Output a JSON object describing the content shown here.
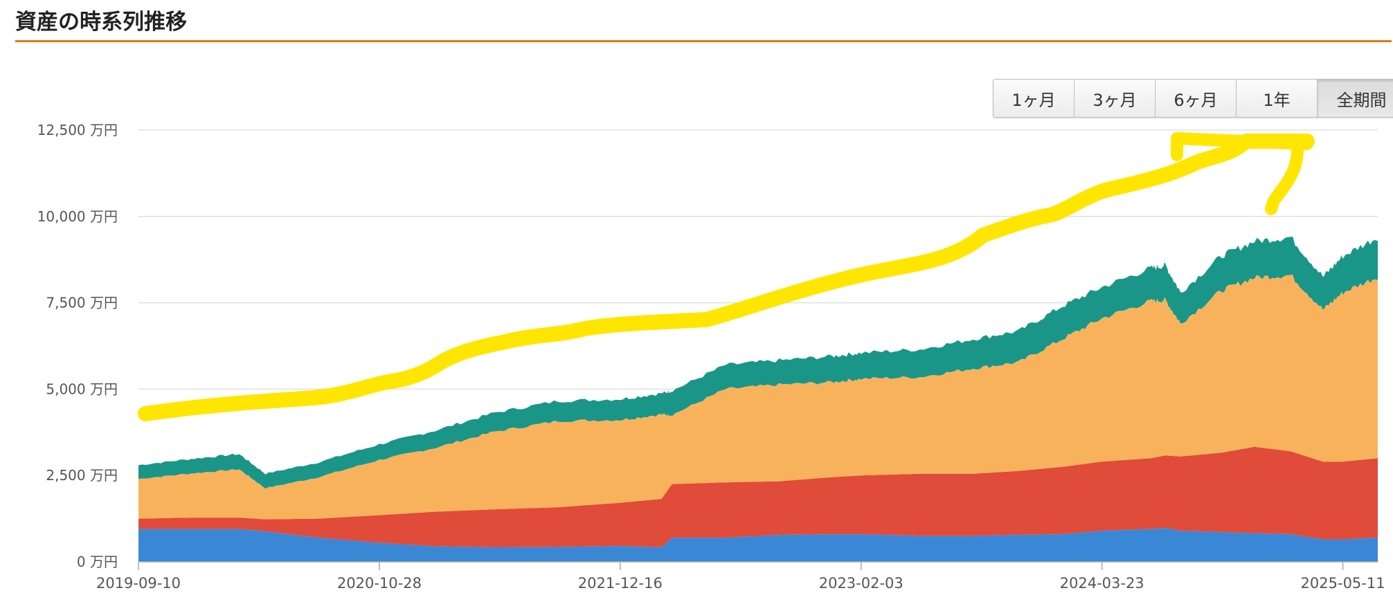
{
  "page": {
    "title": "資産の時系列推移"
  },
  "range_selector": {
    "buttons": [
      {
        "label": "1ヶ月"
      },
      {
        "label": "3ヶ月"
      },
      {
        "label": "6ヶ月"
      },
      {
        "label": "1年"
      },
      {
        "label": "全期間"
      }
    ],
    "active": "全期間"
  },
  "colors": {
    "title_rule": "#e07a10",
    "series": [
      "#3a87d6",
      "#e04b3a",
      "#f9b25c",
      "#1a9688"
    ],
    "annotation": "#ffe600"
  },
  "chart_data": {
    "type": "area",
    "stacked": true,
    "title": "",
    "xlabel": "",
    "ylabel": "",
    "y_unit": "万円",
    "ylim": [
      0,
      12500
    ],
    "yticks": [
      {
        "value": 0,
        "label": "0 万円"
      },
      {
        "value": 2500,
        "label": "2,500 万円"
      },
      {
        "value": 5000,
        "label": "5,000 万円"
      },
      {
        "value": 7500,
        "label": "7,500 万円"
      },
      {
        "value": 10000,
        "label": "10,000 万円"
      },
      {
        "value": 12500,
        "label": "12,500 万円"
      }
    ],
    "xlim": [
      "2019-09-10",
      "2025-07-10"
    ],
    "xticks": [
      "2019-09-10",
      "2020-10-28",
      "2021-12-16",
      "2023-02-03",
      "2024-03-23",
      "2025-05-11"
    ],
    "grid": true,
    "legend": "none",
    "x": [
      "2019-09-10",
      "2019-12-10",
      "2020-03-01",
      "2020-04-15",
      "2020-07-15",
      "2020-10-28",
      "2021-02-01",
      "2021-05-15",
      "2021-09-01",
      "2021-12-16",
      "2022-02-25",
      "2022-03-15",
      "2022-06-15",
      "2022-09-15",
      "2022-12-15",
      "2023-02-03",
      "2023-05-15",
      "2023-08-15",
      "2023-11-01",
      "2024-01-15",
      "2024-03-23",
      "2024-06-15",
      "2024-07-10",
      "2024-08-05",
      "2024-10-15",
      "2024-12-10",
      "2025-02-10",
      "2025-04-07",
      "2025-05-11",
      "2025-07-10"
    ],
    "series": [
      {
        "values": [
          950,
          950,
          950,
          880,
          700,
          550,
          450,
          420,
          430,
          460,
          420,
          700,
          700,
          780,
          800,
          800,
          750,
          750,
          780,
          800,
          900,
          950,
          980,
          900,
          860,
          830,
          800,
          650,
          650,
          700
        ]
      },
      {
        "values": [
          300,
          330,
          330,
          350,
          550,
          800,
          1000,
          1100,
          1150,
          1250,
          1400,
          1550,
          1600,
          1550,
          1650,
          1700,
          1800,
          1800,
          1850,
          1950,
          2000,
          2050,
          2100,
          2150,
          2300,
          2500,
          2400,
          2250,
          2250,
          2300
        ]
      },
      {
        "values": [
          1150,
          1280,
          1400,
          900,
          1200,
          1600,
          1850,
          2250,
          2500,
          2400,
          2450,
          2000,
          2700,
          2800,
          2750,
          2800,
          2800,
          3050,
          3150,
          3700,
          4150,
          4550,
          4500,
          3850,
          4700,
          4900,
          5100,
          4400,
          4900,
          5250
        ]
      },
      {
        "values": [
          400,
          420,
          440,
          420,
          430,
          450,
          500,
          550,
          580,
          600,
          610,
          700,
          700,
          700,
          750,
          750,
          800,
          850,
          900,
          950,
          900,
          950,
          1000,
          900,
          1000,
          1050,
          1100,
          950,
          1050,
          1150
        ]
      }
    ]
  }
}
